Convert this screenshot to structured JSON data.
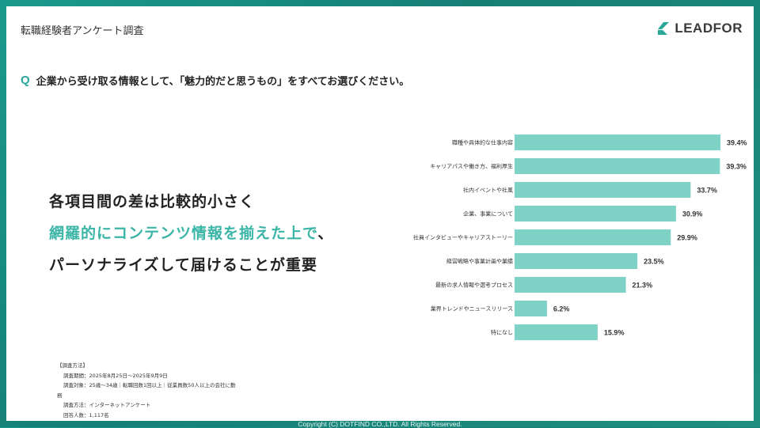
{
  "header": {
    "survey_title": "転職経験者アンケート調査",
    "logo_text": "LEADFOR"
  },
  "question": {
    "mark": "Q",
    "text": "企業から受け取る情報として、「魅力的だと思うもの」をすべてお選びください。"
  },
  "message": {
    "line1": "各項目間の差は比較的小さく",
    "line2_highlight": "網羅的にコンテンツ情報を揃えた上で",
    "line2_tail": "、",
    "line3": "パーソナライズして届けることが重要"
  },
  "method": {
    "heading": "【調査方法】",
    "period": "調査期間：2025年8月25日～2025年9月9日",
    "target_1": "調査対象：25歳～34歳｜転職回数1回以上｜従業員数50人以上の会社に勤",
    "target_2": "務",
    "approach": "調査方法：インターネットアンケート",
    "respondents": "回答人数：1,117名"
  },
  "footer": {
    "copyright": "Copyright (C) DOTFIND CO.,LTD. All Rights Reserved."
  },
  "colors": {
    "bar": "#7fd3c6",
    "accent": "#3ab5a6",
    "background": "#1a9a8c"
  },
  "chart_data": {
    "type": "bar",
    "orientation": "horizontal",
    "categories": [
      "職種や具体的な仕事内容",
      "キャリアパスや働き方、福利厚生",
      "社内イベントや社風",
      "企業、事業について",
      "社員インタビューやキャリアストーリー",
      "経営戦略や事業計画や業績",
      "最新の求人情報や選考プロセス",
      "業界トレンドやニュースリリース",
      "特になし"
    ],
    "values": [
      39.4,
      39.3,
      33.7,
      30.9,
      29.9,
      23.5,
      21.3,
      6.2,
      15.9
    ],
    "value_labels": [
      "39.4%",
      "39.3%",
      "33.7%",
      "30.9%",
      "29.9%",
      "23.5%",
      "21.3%",
      "6.2%",
      "15.9%"
    ],
    "xlim": [
      0,
      39.4
    ]
  }
}
